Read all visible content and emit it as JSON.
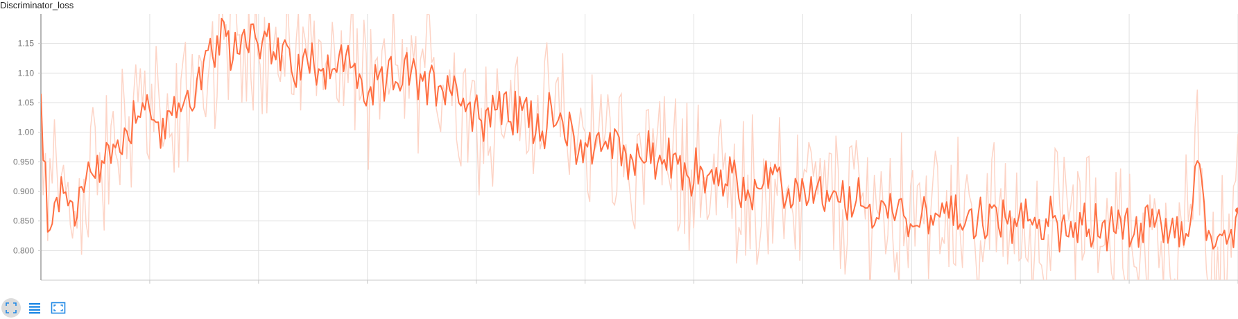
{
  "chart_data": {
    "type": "line",
    "title": "Discriminator_loss",
    "xlabel": "",
    "ylabel": "",
    "ylim": [
      0.75,
      1.2
    ],
    "y_ticks": [
      0.8,
      0.85,
      0.9,
      0.95,
      1.0,
      1.05,
      1.1,
      1.15
    ],
    "y_tick_labels": [
      "0.800",
      "0.850",
      "0.900",
      "0.950",
      "1.00",
      "1.05",
      "1.10",
      "1.15"
    ],
    "x_tick_labels_visible": false,
    "grid": true,
    "x_gridlines": 11,
    "colors": {
      "smoothed": "#ff7043",
      "raw": "#fdd4c6",
      "grid": "#e0e0e0",
      "axis": "#c8c8c8",
      "marker": "#ff7043"
    },
    "series": [
      {
        "role": "smoothed",
        "anchors": [
          [
            0.0,
            1.065
          ],
          [
            0.5,
            0.94
          ],
          [
            2,
            0.925
          ],
          [
            3,
            0.82
          ],
          [
            6,
            0.9
          ],
          [
            10,
            0.89
          ],
          [
            15,
            0.87
          ],
          [
            20,
            0.91
          ],
          [
            25,
            0.95
          ],
          [
            30,
            0.96
          ],
          [
            35,
            0.98
          ],
          [
            40,
            1.02
          ],
          [
            45,
            1.06
          ],
          [
            50,
            1.02
          ],
          [
            55,
            1.0
          ],
          [
            60,
            1.03
          ],
          [
            65,
            1.06
          ],
          [
            70,
            1.09
          ],
          [
            75,
            1.12
          ],
          [
            80,
            1.15
          ],
          [
            85,
            1.14
          ],
          [
            90,
            1.165
          ],
          [
            95,
            1.175
          ],
          [
            100,
            1.15
          ],
          [
            105,
            1.13
          ],
          [
            110,
            1.12
          ],
          [
            115,
            1.11
          ],
          [
            120,
            1.12
          ],
          [
            125,
            1.115
          ],
          [
            130,
            1.11
          ],
          [
            135,
            1.12
          ],
          [
            140,
            1.1
          ],
          [
            145,
            1.06
          ],
          [
            150,
            1.07
          ],
          [
            155,
            1.09
          ],
          [
            160,
            1.1
          ],
          [
            165,
            1.09
          ],
          [
            170,
            1.08
          ],
          [
            175,
            1.08
          ],
          [
            180,
            1.09
          ],
          [
            185,
            1.07
          ],
          [
            190,
            1.04
          ],
          [
            195,
            1.03
          ],
          [
            200,
            1.04
          ],
          [
            205,
            1.04
          ],
          [
            210,
            1.03
          ],
          [
            215,
            1.035
          ],
          [
            220,
            1.02
          ],
          [
            225,
            1.02
          ],
          [
            230,
            1.01
          ],
          [
            235,
            0.995
          ],
          [
            240,
            0.975
          ],
          [
            245,
            0.98
          ],
          [
            250,
            0.985
          ],
          [
            255,
            0.975
          ],
          [
            260,
            0.96
          ],
          [
            265,
            0.96
          ],
          [
            270,
            0.955
          ],
          [
            275,
            0.955
          ],
          [
            280,
            0.945
          ],
          [
            285,
            0.93
          ],
          [
            290,
            0.935
          ],
          [
            295,
            0.925
          ],
          [
            300,
            0.915
          ],
          [
            305,
            0.92
          ],
          [
            310,
            0.91
          ],
          [
            315,
            0.905
          ],
          [
            320,
            0.915
          ],
          [
            325,
            0.905
          ],
          [
            330,
            0.895
          ],
          [
            335,
            0.9
          ],
          [
            340,
            0.9
          ],
          [
            345,
            0.89
          ],
          [
            350,
            0.88
          ],
          [
            355,
            0.88
          ],
          [
            360,
            0.885
          ],
          [
            365,
            0.87
          ],
          [
            370,
            0.865
          ],
          [
            375,
            0.87
          ],
          [
            380,
            0.865
          ],
          [
            385,
            0.86
          ],
          [
            390,
            0.865
          ],
          [
            395,
            0.86
          ],
          [
            400,
            0.855
          ],
          [
            405,
            0.855
          ],
          [
            410,
            0.86
          ],
          [
            415,
            0.85
          ],
          [
            420,
            0.855
          ],
          [
            425,
            0.85
          ],
          [
            430,
            0.845
          ],
          [
            435,
            0.85
          ],
          [
            440,
            0.845
          ],
          [
            445,
            0.85
          ],
          [
            450,
            0.845
          ],
          [
            455,
            0.84
          ],
          [
            460,
            0.845
          ],
          [
            465,
            0.84
          ],
          [
            470,
            0.835
          ],
          [
            475,
            0.845
          ],
          [
            480,
            0.84
          ],
          [
            485,
            0.835
          ],
          [
            490,
            0.84
          ],
          [
            495,
            0.835
          ],
          [
            500,
            0.84
          ],
          [
            505,
            0.83
          ],
          [
            508,
            0.83
          ],
          [
            510,
            0.9
          ],
          [
            512,
            0.945
          ],
          [
            514,
            0.89
          ],
          [
            516,
            0.84
          ],
          [
            518,
            0.825
          ],
          [
            520,
            0.82
          ],
          [
            522,
            0.83
          ],
          [
            524,
            0.825
          ],
          [
            526,
            0.79
          ],
          [
            528,
            0.835
          ],
          [
            530,
            0.868
          ]
        ],
        "last_value": 0.868
      }
    ]
  },
  "toolbar": {
    "fit-domain": "fit-domain-icon",
    "toggle-log": "list-icon",
    "expand": "fullscreen-icon"
  }
}
